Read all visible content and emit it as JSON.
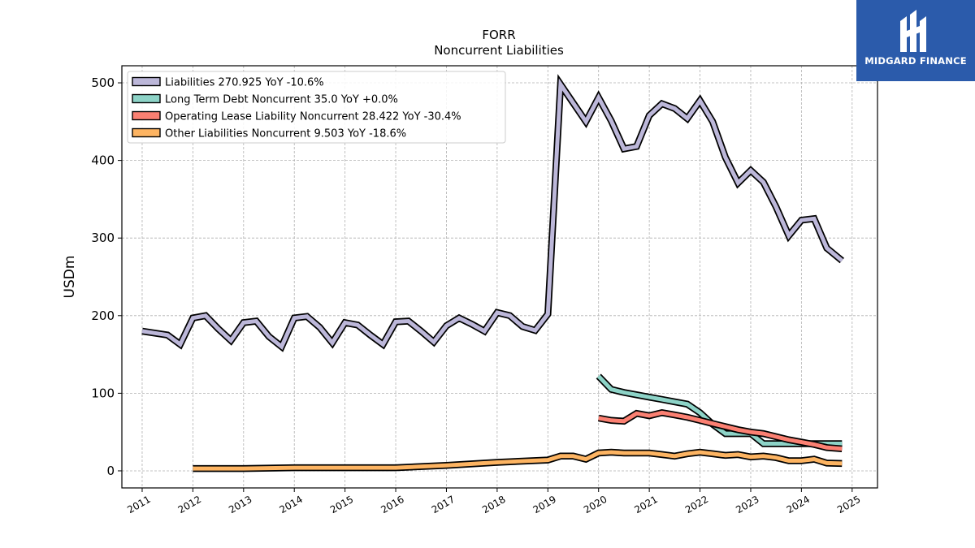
{
  "chart_data": {
    "type": "line",
    "title": "FORR",
    "subtitle": "Noncurrent  Liabilities",
    "ylabel": "USDm",
    "xlabel": "",
    "xlim": [
      2010.6,
      2025.5
    ],
    "ylim": [
      -22,
      522
    ],
    "yticks": [
      0,
      100,
      200,
      300,
      400,
      500
    ],
    "xticks": [
      2011,
      2012,
      2013,
      2014,
      2015,
      2016,
      2017,
      2018,
      2019,
      2020,
      2021,
      2022,
      2023,
      2024,
      2025
    ],
    "grid": true,
    "legend_position": "top-left",
    "series": [
      {
        "name": "Liabilities  270.925 YoY -10.6%",
        "color": "#bcb7d9",
        "points": [
          [
            2011.0,
            180
          ],
          [
            2011.5,
            175
          ],
          [
            2011.75,
            163
          ],
          [
            2012.0,
            197
          ],
          [
            2012.25,
            200
          ],
          [
            2012.5,
            183
          ],
          [
            2012.75,
            168
          ],
          [
            2013.0,
            191
          ],
          [
            2013.25,
            193
          ],
          [
            2013.5,
            173
          ],
          [
            2013.75,
            160
          ],
          [
            2014.0,
            197
          ],
          [
            2014.25,
            199
          ],
          [
            2014.5,
            185
          ],
          [
            2014.75,
            165
          ],
          [
            2015.0,
            191
          ],
          [
            2015.25,
            188
          ],
          [
            2015.5,
            175
          ],
          [
            2015.75,
            163
          ],
          [
            2016.0,
            192
          ],
          [
            2016.25,
            193
          ],
          [
            2016.5,
            180
          ],
          [
            2016.75,
            166
          ],
          [
            2017.0,
            187
          ],
          [
            2017.25,
            197
          ],
          [
            2017.5,
            189
          ],
          [
            2017.75,
            180
          ],
          [
            2018.0,
            204
          ],
          [
            2018.25,
            200
          ],
          [
            2018.5,
            186
          ],
          [
            2018.75,
            181
          ],
          [
            2019.0,
            202
          ],
          [
            2019.25,
            498
          ],
          [
            2019.5,
            474
          ],
          [
            2019.75,
            450
          ],
          [
            2020.0,
            481
          ],
          [
            2020.25,
            451
          ],
          [
            2020.5,
            415
          ],
          [
            2020.75,
            418
          ],
          [
            2021.0,
            458
          ],
          [
            2021.25,
            473
          ],
          [
            2021.5,
            467
          ],
          [
            2021.75,
            454
          ],
          [
            2022.0,
            477
          ],
          [
            2022.25,
            450
          ],
          [
            2022.5,
            404
          ],
          [
            2022.75,
            371
          ],
          [
            2023.0,
            387
          ],
          [
            2023.25,
            372
          ],
          [
            2023.5,
            340
          ],
          [
            2023.75,
            303
          ],
          [
            2024.0,
            323
          ],
          [
            2024.25,
            325
          ],
          [
            2024.5,
            287
          ],
          [
            2024.8,
            270.9
          ]
        ]
      },
      {
        "name": "Long Term Debt Noncurrent  35.0 YoY +0.0%",
        "color": "#8dd3c7",
        "points": [
          [
            2020.0,
            122
          ],
          [
            2020.25,
            105
          ],
          [
            2020.5,
            101
          ],
          [
            2020.75,
            98
          ],
          [
            2021.0,
            95
          ],
          [
            2021.25,
            92
          ],
          [
            2021.5,
            89
          ],
          [
            2021.75,
            86
          ],
          [
            2022.0,
            75
          ],
          [
            2022.25,
            60
          ],
          [
            2022.5,
            48
          ],
          [
            2022.75,
            48
          ],
          [
            2023.0,
            48
          ],
          [
            2023.25,
            35
          ],
          [
            2023.5,
            35
          ],
          [
            2023.75,
            35
          ],
          [
            2024.0,
            35
          ],
          [
            2024.25,
            35
          ],
          [
            2024.5,
            35
          ],
          [
            2024.8,
            35
          ]
        ]
      },
      {
        "name": "Operating Lease Liability Noncurrent  28.422 YoY -30.4%",
        "color": "#fb8072",
        "points": [
          [
            2020.0,
            68
          ],
          [
            2020.25,
            65
          ],
          [
            2020.5,
            64
          ],
          [
            2020.75,
            74
          ],
          [
            2021.0,
            71
          ],
          [
            2021.25,
            75
          ],
          [
            2021.5,
            72
          ],
          [
            2021.75,
            69
          ],
          [
            2022.0,
            65
          ],
          [
            2022.25,
            61
          ],
          [
            2022.5,
            57
          ],
          [
            2022.75,
            53
          ],
          [
            2023.0,
            50
          ],
          [
            2023.25,
            48
          ],
          [
            2023.5,
            44
          ],
          [
            2023.75,
            40
          ],
          [
            2024.0,
            37
          ],
          [
            2024.25,
            34
          ],
          [
            2024.5,
            30
          ],
          [
            2024.8,
            28.4
          ]
        ]
      },
      {
        "name": "Other Liabilities Noncurrent  9.503 YoY -18.6%",
        "color": "#fdb462",
        "points": [
          [
            2012.0,
            3
          ],
          [
            2013.0,
            3
          ],
          [
            2014.0,
            4
          ],
          [
            2015.0,
            4
          ],
          [
            2016.0,
            4
          ],
          [
            2017.0,
            7
          ],
          [
            2018.0,
            11
          ],
          [
            2019.0,
            14
          ],
          [
            2019.25,
            19
          ],
          [
            2019.5,
            19
          ],
          [
            2019.75,
            15
          ],
          [
            2020.0,
            23
          ],
          [
            2020.25,
            24
          ],
          [
            2020.5,
            23
          ],
          [
            2020.75,
            23
          ],
          [
            2021.0,
            23
          ],
          [
            2021.25,
            21
          ],
          [
            2021.5,
            19
          ],
          [
            2021.75,
            22
          ],
          [
            2022.0,
            24
          ],
          [
            2022.25,
            22
          ],
          [
            2022.5,
            20
          ],
          [
            2022.75,
            21
          ],
          [
            2023.0,
            18
          ],
          [
            2023.25,
            19
          ],
          [
            2023.5,
            17
          ],
          [
            2023.75,
            13
          ],
          [
            2024.0,
            13
          ],
          [
            2024.25,
            15
          ],
          [
            2024.5,
            10
          ],
          [
            2024.8,
            9.5
          ]
        ]
      }
    ]
  },
  "logo": {
    "text": "MIDGARD FINANCE",
    "background": "#2b5bab",
    "icon": "midgard-logo-icon"
  }
}
